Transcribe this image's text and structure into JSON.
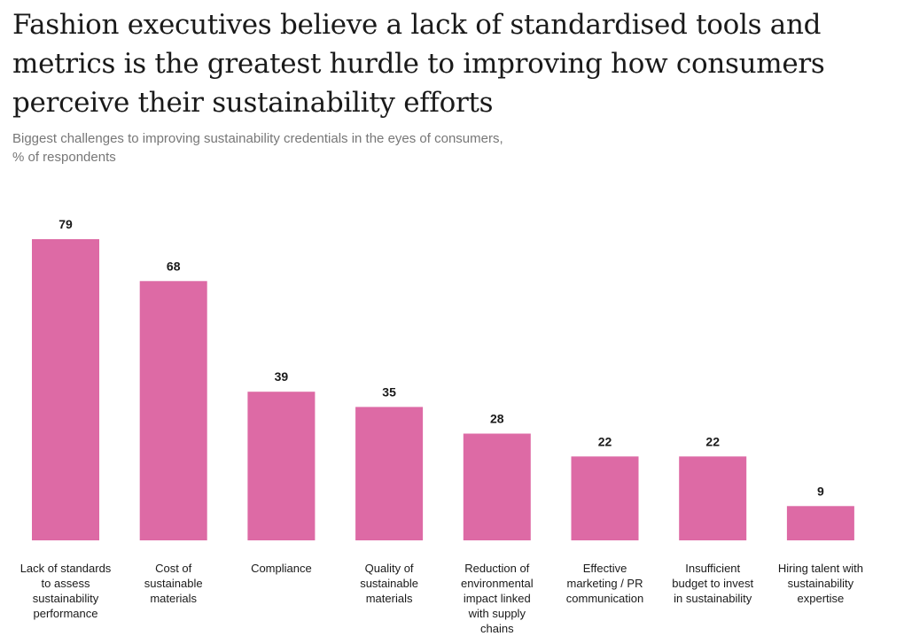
{
  "header": {
    "title": "Fashion executives believe a lack of standardised tools and metrics is the greatest hurdle to improving how consumers perceive their sustainability efforts",
    "subtitle_line1": "Biggest challenges to improving sustainability credentials in the eyes of consumers,",
    "subtitle_line2": "% of respondents"
  },
  "chart_data": {
    "type": "bar",
    "title": "Fashion executives believe a lack of standardised tools and metrics is the greatest hurdle to improving how consumers perceive their sustainability efforts",
    "subtitle": "Biggest challenges to improving sustainability credentials in the eyes of consumers, % of respondents",
    "categories": [
      [
        "Lack of standards",
        "to assess",
        "sustainability",
        "performance"
      ],
      [
        "Cost of",
        "sustainable",
        "materials"
      ],
      [
        "Compliance"
      ],
      [
        "Quality of",
        "sustainable",
        "materials"
      ],
      [
        "Reduction of",
        "environmental",
        "impact linked",
        "with supply",
        "chains"
      ],
      [
        "Effective",
        "marketing / PR",
        "communication"
      ],
      [
        "Insufficient",
        "budget to invest",
        "in sustainability"
      ],
      [
        "Hiring talent with",
        "sustainability",
        "expertise"
      ]
    ],
    "values": [
      79,
      68,
      39,
      35,
      28,
      22,
      22,
      9
    ],
    "bar_color": "#dd6aa5",
    "ylim": [
      0,
      79
    ],
    "grid": false,
    "legend": "none"
  }
}
